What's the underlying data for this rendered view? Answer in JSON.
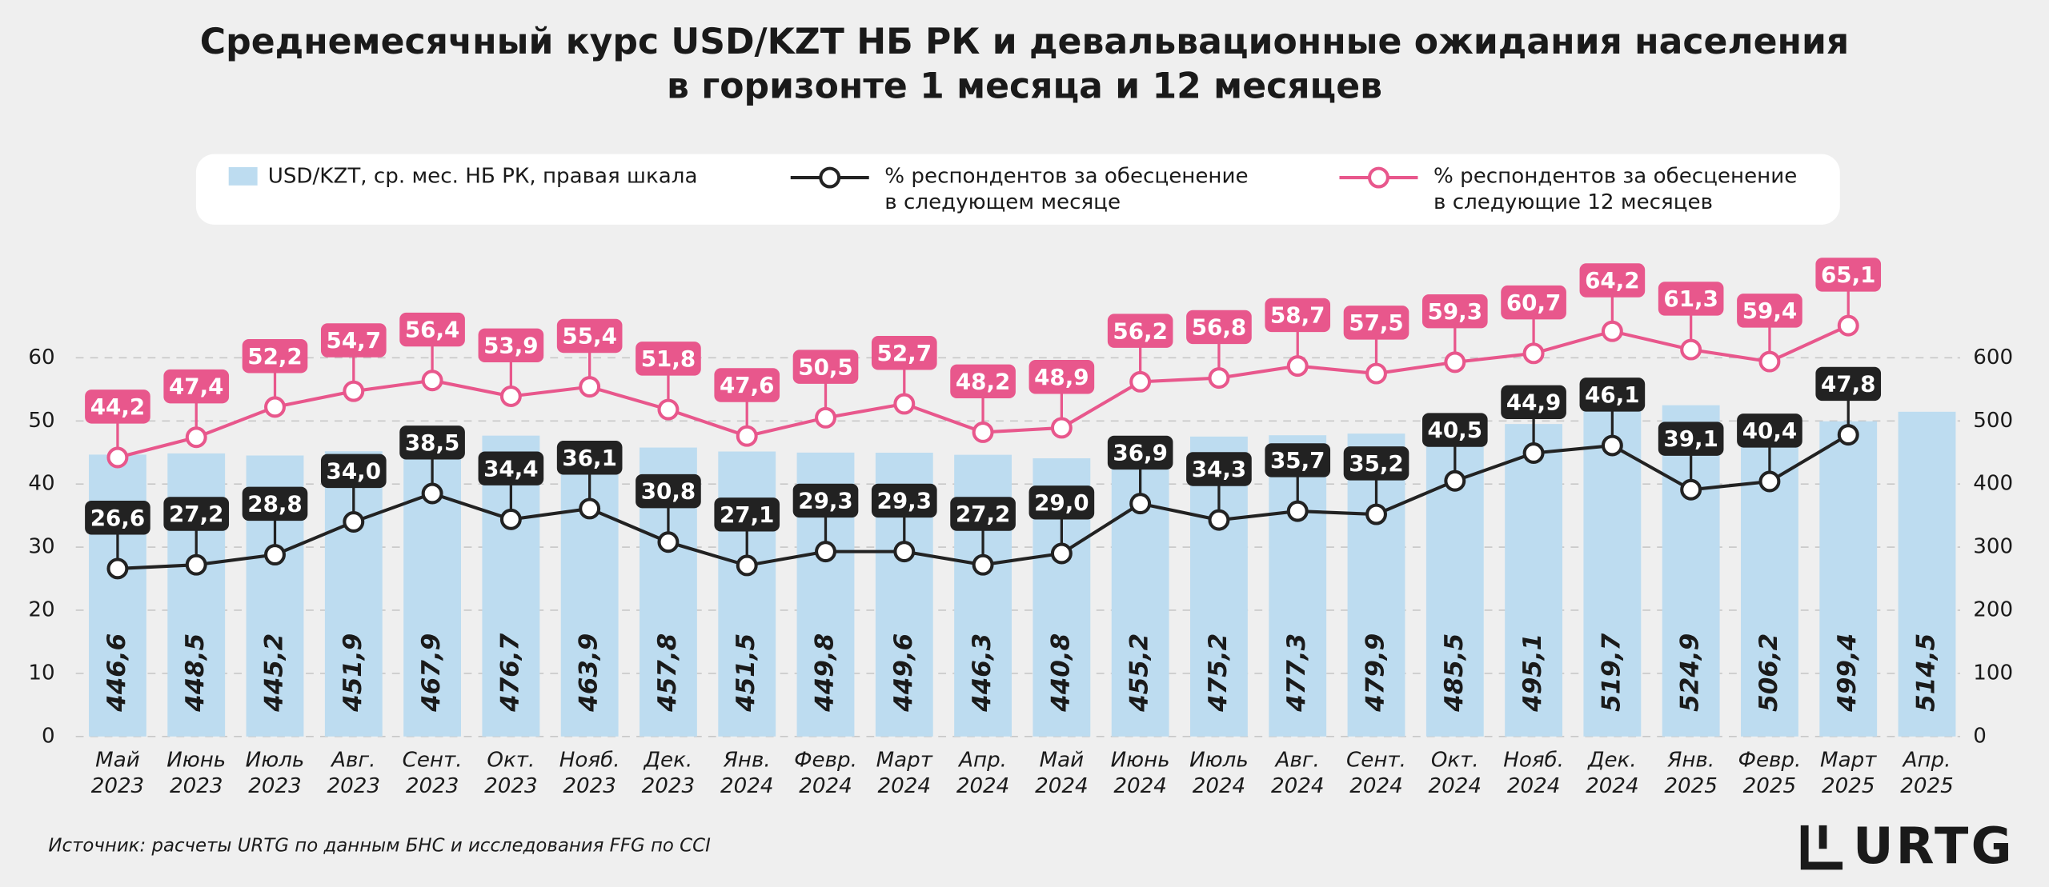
{
  "chart_data": {
    "type": "bar",
    "title": "Среднемесячный курс USD/KZT НБ РК и девальвационные ожидания населения\nв горизонте 1 месяца и 12 месяцев",
    "categories": [
      "Май\n2023",
      "Июнь\n2023",
      "Июль\n2023",
      "Авг.\n2023",
      "Сент.\n2023",
      "Окт.\n2023",
      "Нояб.\n2023",
      "Дек.\n2023",
      "Янв.\n2024",
      "Февр.\n2024",
      "Март\n2024",
      "Апр.\n2024",
      "Май\n2024",
      "Июнь\n2024",
      "Июль\n2024",
      "Авг.\n2024",
      "Сент.\n2024",
      "Окт.\n2024",
      "Нояб.\n2024",
      "Дек.\n2024",
      "Янв.\n2025",
      "Февр.\n2025",
      "Март\n2025",
      "Апр.\n2025"
    ],
    "ylim": [
      0,
      60
    ],
    "yticks": [
      0,
      10,
      20,
      30,
      40,
      50,
      60
    ],
    "y2lim": [
      0,
      600
    ],
    "y2ticks": [
      0,
      100,
      200,
      300,
      400,
      500,
      600
    ],
    "grid": true,
    "series": [
      {
        "name": "USD/KZT, ср. мес. НБ РК, правая шкала",
        "type": "bar",
        "axis": "y2",
        "color": "#bddcf0",
        "values": [
          446.6,
          448.5,
          445.2,
          451.9,
          467.9,
          476.7,
          463.9,
          457.8,
          451.5,
          449.8,
          449.6,
          446.3,
          440.8,
          455.2,
          475.2,
          477.3,
          479.9,
          485.5,
          495.1,
          519.7,
          524.9,
          506.2,
          499.4,
          514.5
        ],
        "value_labels": [
          "446,6",
          "448,5",
          "445,2",
          "451,9",
          "467,9",
          "476,7",
          "463,9",
          "457,8",
          "451,5",
          "449,8",
          "449,6",
          "446,3",
          "440,8",
          "455,2",
          "475,2",
          "477,3",
          "479,9",
          "485,5",
          "495,1",
          "519,7",
          "524,9",
          "506,2",
          "499,4",
          "514,5"
        ]
      },
      {
        "name": "% респондентов за обесценение\nв следующем месяце",
        "type": "line",
        "color": "#222222",
        "values": [
          26.6,
          27.2,
          28.8,
          34.0,
          38.5,
          34.4,
          36.1,
          30.8,
          27.1,
          29.3,
          29.3,
          27.2,
          29.0,
          36.9,
          34.3,
          35.7,
          35.2,
          40.5,
          44.9,
          46.1,
          39.1,
          40.4,
          47.8,
          null
        ],
        "value_labels": [
          "26,6",
          "27,2",
          "28,8",
          "34,0",
          "38,5",
          "34,4",
          "36,1",
          "30,8",
          "27,1",
          "29,3",
          "29,3",
          "27,2",
          "29,0",
          "36,9",
          "34,3",
          "35,7",
          "35,2",
          "40,5",
          "44,9",
          "46,1",
          "39,1",
          "40,4",
          "47,8",
          null
        ]
      },
      {
        "name": "% респондентов за обесценение\nв следующие 12 месяцев",
        "type": "line",
        "color": "#e8578c",
        "values": [
          44.2,
          47.4,
          52.2,
          54.7,
          56.4,
          53.9,
          55.4,
          51.8,
          47.6,
          50.5,
          52.7,
          48.2,
          48.9,
          56.2,
          56.8,
          58.7,
          57.5,
          59.3,
          60.7,
          64.2,
          61.3,
          59.4,
          65.1,
          null
        ],
        "value_labels": [
          "44,2",
          "47,4",
          "52,2",
          "54,7",
          "56,4",
          "53,9",
          "55,4",
          "51,8",
          "47,6",
          "50,5",
          "52,7",
          "48,2",
          "48,9",
          "56,2",
          "56,8",
          "58,7",
          "57,5",
          "59,3",
          "60,7",
          "64,2",
          "61,3",
          "59,4",
          "65,1",
          null
        ]
      }
    ],
    "source": "Источник: расчеты URTG по данным БНС и исследования FFG по CCI",
    "logo": "URTG"
  }
}
